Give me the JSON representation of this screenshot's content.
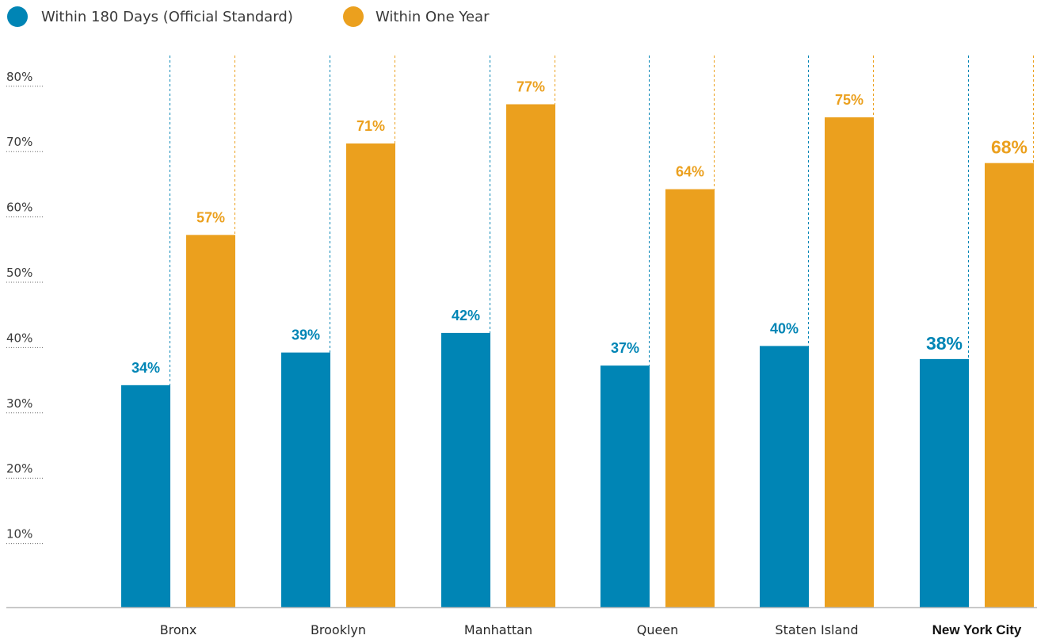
{
  "chart_data": {
    "type": "bar",
    "title": "",
    "xlabel": "",
    "ylabel": "",
    "ylim": [
      0,
      85
    ],
    "yticks": [
      10,
      20,
      30,
      40,
      50,
      60,
      70,
      80
    ],
    "ytick_labels": [
      "10%",
      "20%",
      "30%",
      "40%",
      "50%",
      "60%",
      "70%",
      "80%"
    ],
    "categories": [
      "Bronx",
      "Brooklyn",
      "Manhattan",
      "Queen",
      "Staten Island",
      "New York City"
    ],
    "highlight_category": "New York City",
    "legend_position": "top-left",
    "grid": false,
    "series": [
      {
        "name": "Within 180 Days (Official Standard)",
        "color": "#0085b5",
        "values": [
          34,
          39,
          42,
          37,
          40,
          38
        ],
        "labels": [
          "34%",
          "39%",
          "42%",
          "37%",
          "40%",
          "38%"
        ]
      },
      {
        "name": "Within One Year",
        "color": "#eba01e",
        "values": [
          57,
          71,
          77,
          64,
          75,
          68
        ],
        "labels": [
          "57%",
          "71%",
          "77%",
          "64%",
          "75%",
          "68%"
        ]
      }
    ]
  }
}
